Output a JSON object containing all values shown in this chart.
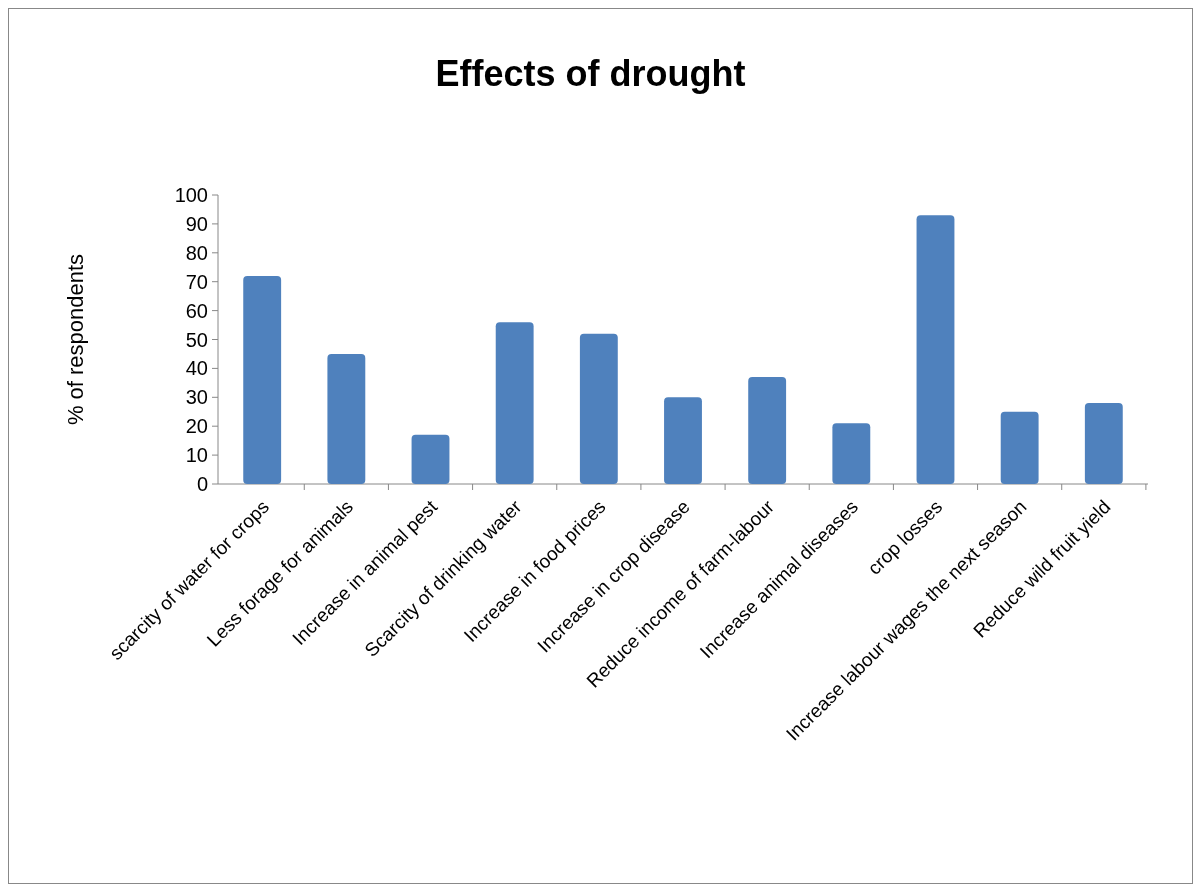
{
  "chart_data": {
    "type": "bar",
    "title": "Effects of drought",
    "ylabel": "% of respondents",
    "categories": [
      "scarcity of water for crops",
      "Less forage for animals",
      "Increase in animal pest",
      "Scarcity of drinking water",
      "Increase in food prices",
      "Increase in crop disease",
      "Reduce income of farm-labour",
      "Increase animal diseases",
      "crop losses",
      "Increase labour wages the next season",
      "Reduce wild fruit yield"
    ],
    "values": [
      72,
      45,
      17,
      56,
      52,
      30,
      37,
      21,
      93,
      25,
      28
    ],
    "color": "#4f81bd",
    "ylim": [
      0,
      100
    ],
    "yticks": [
      0,
      10,
      20,
      30,
      40,
      50,
      60,
      70,
      80,
      90,
      100
    ],
    "grid": false
  }
}
